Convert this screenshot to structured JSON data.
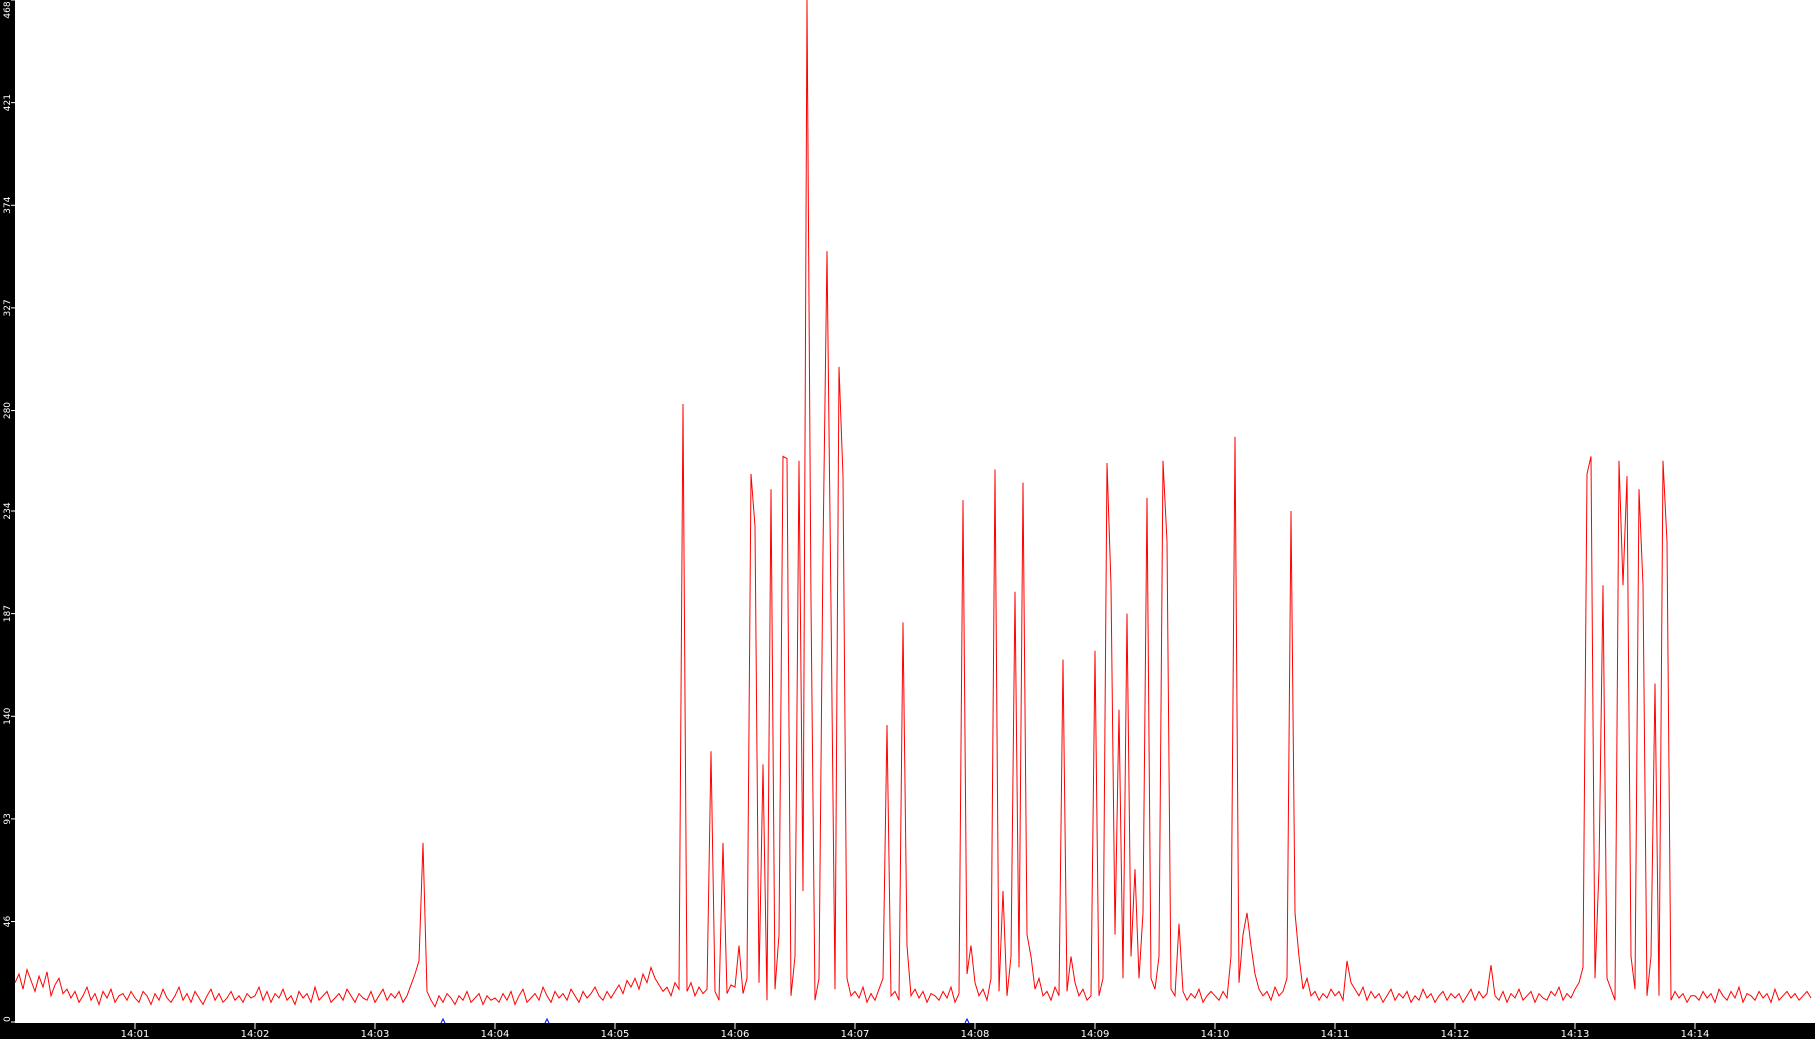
{
  "chart_data": {
    "type": "line",
    "title": "",
    "xlabel": "",
    "ylabel": "",
    "x_start": "14:00:00",
    "x_end": "14:15:00",
    "sample_interval_seconds": 2,
    "ylim": [
      0,
      468
    ],
    "y_ticks": [
      "0",
      "46",
      "93",
      "140",
      "187",
      "234",
      "280",
      "327",
      "374",
      "421",
      "468"
    ],
    "x_ticks": [
      "14:01",
      "14:02",
      "14:03",
      "14:04",
      "14:05",
      "14:06",
      "14:07",
      "14:08",
      "14:09",
      "14:10",
      "14:11",
      "14:12",
      "14:13",
      "14:14"
    ],
    "grid": false,
    "line_color": "#ff0000",
    "axis_background": "#000000",
    "axis_text_color": "#ffffff",
    "marker_color": "#0000ff",
    "event_markers": [
      "14:03:34",
      "14:04:26",
      "14:07:56"
    ],
    "values": [
      18,
      22,
      15,
      24,
      19,
      14,
      21,
      16,
      23,
      12,
      17,
      20,
      13,
      15,
      11,
      14,
      9,
      12,
      16,
      10,
      13,
      8,
      14,
      11,
      15,
      9,
      12,
      13,
      10,
      14,
      11,
      9,
      14,
      12,
      8,
      13,
      10,
      15,
      11,
      9,
      12,
      16,
      10,
      13,
      9,
      14,
      11,
      8,
      12,
      15,
      10,
      13,
      9,
      11,
      14,
      10,
      12,
      9,
      13,
      11,
      12,
      16,
      10,
      14,
      9,
      13,
      11,
      15,
      10,
      12,
      8,
      14,
      11,
      13,
      9,
      16,
      10,
      12,
      14,
      9,
      11,
      13,
      10,
      15,
      12,
      9,
      13,
      11,
      10,
      14,
      9,
      12,
      15,
      10,
      13,
      11,
      14,
      9,
      12,
      17,
      22,
      28,
      82,
      14,
      10,
      7,
      12,
      9,
      13,
      11,
      8,
      12,
      10,
      14,
      9,
      11,
      13,
      8,
      12,
      10,
      11,
      9,
      13,
      10,
      14,
      8,
      12,
      15,
      9,
      11,
      13,
      10,
      16,
      12,
      9,
      14,
      11,
      13,
      10,
      15,
      12,
      9,
      14,
      11,
      13,
      16,
      12,
      10,
      14,
      11,
      14,
      17,
      13,
      19,
      16,
      20,
      15,
      22,
      18,
      25,
      20,
      17,
      14,
      16,
      12,
      18,
      15,
      283,
      14,
      18,
      12,
      16,
      13,
      15,
      124,
      14,
      10,
      82,
      13,
      17,
      16,
      35,
      13,
      20,
      251,
      227,
      18,
      118,
      10,
      244,
      15,
      40,
      259,
      258,
      12,
      30,
      257,
      60,
      468,
      192,
      10,
      20,
      216,
      353,
      190,
      15,
      300,
      250,
      20,
      12,
      14,
      11,
      16,
      9,
      13,
      10,
      15,
      20,
      136,
      12,
      14,
      10,
      183,
      35,
      12,
      15,
      11,
      14,
      9,
      13,
      12,
      10,
      14,
      11,
      16,
      9,
      13,
      239,
      22,
      35,
      18,
      12,
      15,
      10,
      20,
      253,
      14,
      60,
      12,
      30,
      197,
      25,
      247,
      40,
      30,
      15,
      20,
      12,
      14,
      10,
      16,
      12,
      166,
      14,
      30,
      18,
      12,
      15,
      10,
      12,
      170,
      12,
      20,
      256,
      200,
      40,
      143,
      20,
      187,
      30,
      70,
      20,
      50,
      240,
      20,
      15,
      30,
      257,
      220,
      15,
      12,
      45,
      14,
      10,
      13,
      11,
      15,
      9,
      12,
      14,
      12,
      10,
      14,
      11,
      30,
      268,
      18,
      40,
      50,
      35,
      22,
      15,
      12,
      14,
      10,
      16,
      12,
      14,
      20,
      234,
      50,
      30,
      15,
      20,
      12,
      14,
      10,
      13,
      11,
      15,
      12,
      14,
      10,
      28,
      18,
      15,
      12,
      16,
      10,
      14,
      11,
      13,
      9,
      12,
      15,
      10,
      13,
      11,
      14,
      9,
      12,
      10,
      15,
      11,
      13,
      9,
      12,
      14,
      10,
      13,
      11,
      13,
      9,
      12,
      15,
      10,
      14,
      11,
      13,
      26,
      12,
      10,
      14,
      9,
      13,
      11,
      15,
      10,
      12,
      14,
      9,
      13,
      11,
      10,
      14,
      12,
      16,
      10,
      13,
      11,
      15,
      18,
      25,
      251,
      259,
      20,
      70,
      200,
      20,
      15,
      10,
      257,
      200,
      250,
      30,
      15,
      244,
      200,
      12,
      30,
      155,
      12,
      257,
      220,
      10,
      14,
      11,
      13,
      9,
      12,
      12,
      10,
      14,
      11,
      13,
      9,
      15,
      12,
      10,
      14,
      11,
      16,
      9,
      13,
      12,
      10,
      14,
      11,
      13,
      9,
      15,
      10,
      12,
      14,
      11,
      13,
      10,
      12,
      14,
      11
    ]
  }
}
